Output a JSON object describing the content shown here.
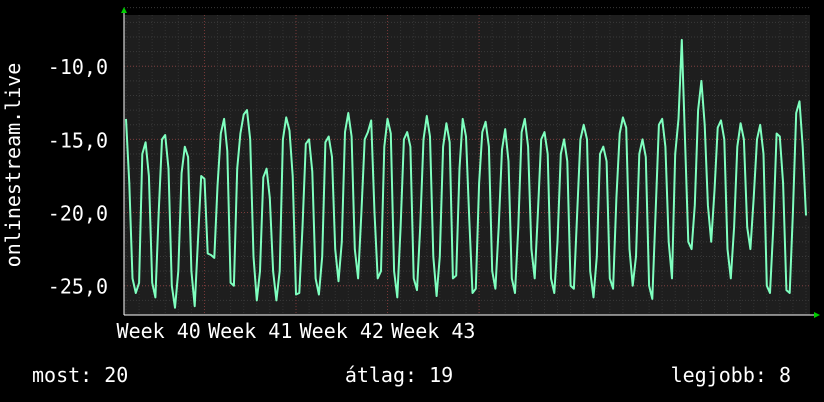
{
  "chart_data": {
    "type": "line",
    "title": "",
    "ylabel": "onlinestream.live",
    "xlabel": "",
    "y_scale": "linear",
    "y_inverted": true,
    "ylim": [
      -27.0,
      -6.5
    ],
    "y_ticks": [
      -10.0,
      -15.0,
      -20.0,
      -25.0
    ],
    "y_tick_labels": [
      "-10,0",
      "-15,0",
      "-20,0",
      "-25,0"
    ],
    "x_tick_labels": [
      "Week 40",
      "Week 41",
      "Week 42",
      "Week 43"
    ],
    "grid": true,
    "legend": "none",
    "series": [
      {
        "color": "#7fffbf",
        "x_unit": "day",
        "x_start": 0,
        "x_step": 0.25,
        "values": [
          -13.6,
          -18.0,
          -24.5,
          -25.5,
          -24.8,
          -16.0,
          -15.2,
          -17.5,
          -24.8,
          -25.8,
          -20.0,
          -15.0,
          -14.7,
          -17.0,
          -25.0,
          -26.5,
          -24.0,
          -17.3,
          -15.5,
          -16.2,
          -24.0,
          -26.4,
          -22.0,
          -17.5,
          -17.7,
          -22.8,
          -22.9,
          -23.1,
          -18.2,
          -14.6,
          -13.6,
          -15.8,
          -24.8,
          -25.0,
          -17.0,
          -14.6,
          -13.3,
          -13.0,
          -15.0,
          -23.0,
          -26.0,
          -24.0,
          -17.6,
          -17.0,
          -19.0,
          -24.0,
          -26.0,
          -24.0,
          -15.0,
          -13.5,
          -14.4,
          -17.5,
          -25.6,
          -25.5,
          -21.0,
          -15.3,
          -15.0,
          -17.2,
          -24.5,
          -25.6,
          -23.0,
          -15.2,
          -14.8,
          -16.2,
          -22.5,
          -24.7,
          -22.0,
          -14.5,
          -13.2,
          -14.8,
          -22.5,
          -24.5,
          -20.0,
          -15.0,
          -14.5,
          -13.7,
          -20.0,
          -24.5,
          -24.0,
          -15.5,
          -13.6,
          -14.6,
          -24.0,
          -25.8,
          -21.0,
          -15.0,
          -14.5,
          -15.5,
          -24.5,
          -25.3,
          -21.0,
          -15.0,
          -13.4,
          -14.8,
          -23.0,
          -25.7,
          -23.0,
          -15.5,
          -13.9,
          -15.2,
          -24.5,
          -24.3,
          -17.0,
          -13.6,
          -14.8,
          -20.5,
          -25.5,
          -25.2,
          -18.0,
          -14.5,
          -13.8,
          -15.5,
          -24.0,
          -25.2,
          -21.0,
          -15.7,
          -14.3,
          -16.5,
          -24.5,
          -25.5,
          -21.0,
          -14.5,
          -13.6,
          -15.5,
          -22.5,
          -24.5,
          -20.0,
          -15.0,
          -14.5,
          -16.0,
          -24.5,
          -25.5,
          -22.0,
          -16.0,
          -15.0,
          -16.5,
          -25.0,
          -25.2,
          -20.0,
          -15.0,
          -14.0,
          -15.0,
          -24.0,
          -25.8,
          -23.0,
          -16.0,
          -15.5,
          -16.5,
          -24.5,
          -25.2,
          -19.0,
          -14.6,
          -13.5,
          -14.2,
          -22.5,
          -25.0,
          -23.0,
          -16.0,
          -15.0,
          -16.2,
          -25.0,
          -25.9,
          -20.0,
          -14.0,
          -13.6,
          -15.5,
          -22.0,
          -24.5,
          -16.0,
          -13.6,
          -8.2,
          -15.0,
          -22.0,
          -22.5,
          -19.5,
          -13.0,
          -11.0,
          -14.0,
          -19.5,
          -22.0,
          -18.5,
          -14.2,
          -13.7,
          -15.0,
          -22.5,
          -24.5,
          -21.0,
          -15.5,
          -13.9,
          -15.0,
          -21.0,
          -22.5,
          -19.0,
          -15.0,
          -14.0,
          -16.0,
          -25.0,
          -25.5,
          -21.0,
          -14.6,
          -14.8,
          -18.0,
          -25.3,
          -25.5,
          -20.0,
          -13.2,
          -12.4,
          -15.5,
          -20.2
        ]
      }
    ]
  },
  "footer": {
    "current": "most: 20",
    "average": "átlag: 19",
    "best": "legjobb: 8"
  }
}
